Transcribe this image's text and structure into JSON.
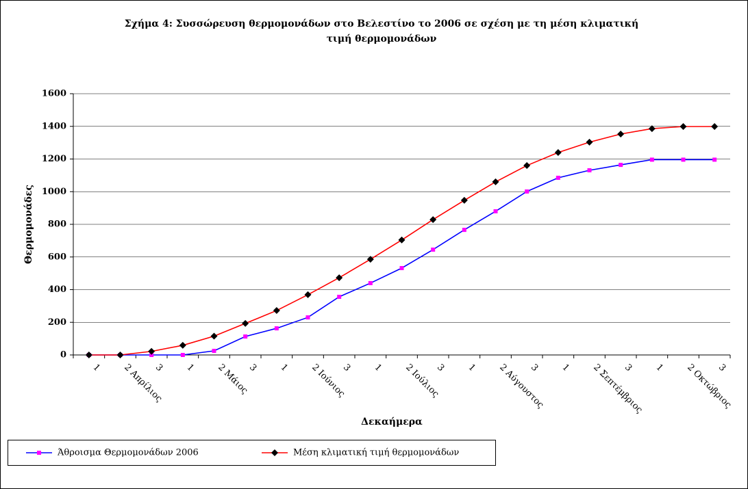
{
  "chart_data": {
    "type": "line",
    "title": "Σχήμα 4: Συσσώρευση θερμομονάδων στο Βελεστίνο το 2006 σε σχέση με τη μέση κλιματική",
    "title_line2": "τιμή θερμομονάδων",
    "x_label": "Δεκαήμερα",
    "y_label": "Θερμομονάδες",
    "categories": [
      "1",
      "2 Απρίλιος",
      "3",
      "1",
      "2 Μάιος",
      "3",
      "1",
      "2 Ιούνιος",
      "3",
      "1",
      "2 Ιούλιος",
      "3",
      "1",
      "2 Αύγουστος",
      "3",
      "1",
      "2 Σεπτέμβριος",
      "3",
      "1",
      "2 Οκτώβριος",
      "3"
    ],
    "series": [
      {
        "name": "Άθροισμα Θερμομονάδων 2006",
        "color": "#0000ff",
        "marker_color": "#ff00ff",
        "marker": "square",
        "values": [
          0,
          0,
          0,
          0,
          25,
          113,
          163,
          230,
          356,
          440,
          532,
          645,
          766,
          880,
          1001,
          1085,
          1131,
          1164,
          1196,
          1196,
          1196
        ]
      },
      {
        "name": "Μέση κλιματική τιμή θερμομονάδων",
        "color": "#ff0000",
        "marker_color": "#000000",
        "marker": "diamond",
        "values": [
          0,
          0,
          22,
          59,
          115,
          193,
          272,
          369,
          473,
          586,
          704,
          829,
          947,
          1060,
          1160,
          1240,
          1303,
          1353,
          1386,
          1399,
          1399
        ]
      }
    ],
    "ylim": [
      0,
      1600
    ],
    "yticks": [
      0,
      200,
      400,
      600,
      800,
      1000,
      1200,
      1400,
      1600
    ],
    "grid": true
  }
}
